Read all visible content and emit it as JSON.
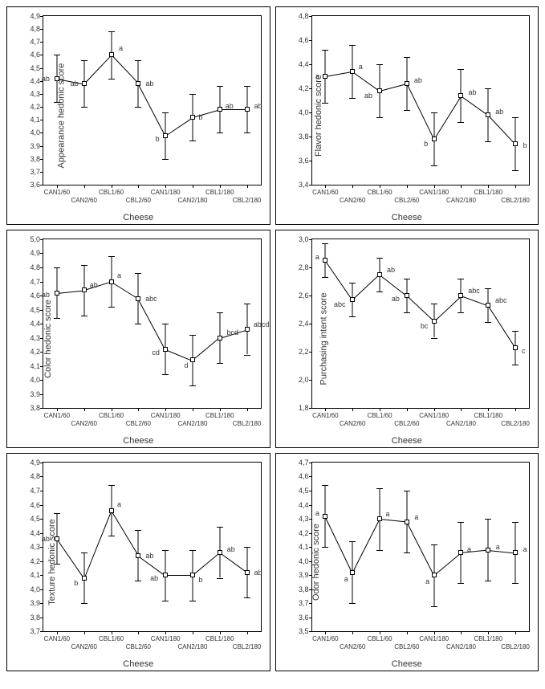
{
  "global": {
    "xlabel": "Cheese",
    "categories": [
      "CAN1/60",
      "CAN2/60",
      "CBL1/60",
      "CBL2/60",
      "CAN1/180",
      "CAN2/180",
      "CBL1/180",
      "CBL2/180"
    ],
    "background_color": "#ffffff",
    "point_fill": "#ffffff",
    "point_border": "#000000",
    "line_color": "#000000",
    "errbar_color": "#000000",
    "font_family": "Arial",
    "label_fontsize": 11,
    "tick_fontsize": 9,
    "annot_fontsize": 9,
    "marker_size": 6,
    "cap_width": 8
  },
  "panels": [
    {
      "ylabel": "Appearance hedonic score",
      "ylim": [
        3.6,
        4.9
      ],
      "yticks": [
        3.6,
        3.7,
        3.8,
        3.9,
        4.0,
        4.1,
        4.2,
        4.3,
        4.4,
        4.5,
        4.6,
        4.7,
        4.8,
        4.9
      ],
      "data": [
        {
          "y": 4.42,
          "err": 0.18,
          "label": "ab",
          "dx": -14,
          "dy": 0
        },
        {
          "y": 4.38,
          "err": 0.18,
          "label": "ab",
          "dx": -12,
          "dy": 0
        },
        {
          "y": 4.6,
          "err": 0.18,
          "label": "a",
          "dx": 12,
          "dy": -8
        },
        {
          "y": 4.38,
          "err": 0.18,
          "label": "ab",
          "dx": 14,
          "dy": 0
        },
        {
          "y": 3.98,
          "err": 0.18,
          "label": "b",
          "dx": -10,
          "dy": 4
        },
        {
          "y": 4.12,
          "err": 0.18,
          "label": "b",
          "dx": 10,
          "dy": 0
        },
        {
          "y": 4.18,
          "err": 0.18,
          "label": "ab",
          "dx": 12,
          "dy": -4
        },
        {
          "y": 4.18,
          "err": 0.18,
          "label": "ab",
          "dx": 14,
          "dy": -4
        }
      ]
    },
    {
      "ylabel": "Flavor hedonic score",
      "ylim": [
        3.4,
        4.8
      ],
      "yticks": [
        3.4,
        3.6,
        3.8,
        4.0,
        4.2,
        4.4,
        4.6,
        4.8
      ],
      "data": [
        {
          "y": 4.3,
          "err": 0.22,
          "label": "a",
          "dx": -10,
          "dy": 0
        },
        {
          "y": 4.34,
          "err": 0.22,
          "label": "a",
          "dx": 10,
          "dy": -6
        },
        {
          "y": 4.18,
          "err": 0.22,
          "label": "ab",
          "dx": -14,
          "dy": 6
        },
        {
          "y": 4.24,
          "err": 0.22,
          "label": "ab",
          "dx": 14,
          "dy": -4
        },
        {
          "y": 3.78,
          "err": 0.22,
          "label": "b",
          "dx": -10,
          "dy": 6
        },
        {
          "y": 4.14,
          "err": 0.22,
          "label": "ab",
          "dx": 14,
          "dy": -4
        },
        {
          "y": 3.98,
          "err": 0.22,
          "label": "ab",
          "dx": 14,
          "dy": -4
        },
        {
          "y": 3.74,
          "err": 0.22,
          "label": "b",
          "dx": 12,
          "dy": 2
        }
      ]
    },
    {
      "ylabel": "Color hedonic score",
      "ylim": [
        3.8,
        5.0
      ],
      "yticks": [
        3.8,
        3.9,
        4.0,
        4.1,
        4.2,
        4.3,
        4.4,
        4.5,
        4.6,
        4.7,
        4.8,
        4.9,
        5.0
      ],
      "data": [
        {
          "y": 4.62,
          "err": 0.18,
          "label": "ab",
          "dx": -14,
          "dy": 2
        },
        {
          "y": 4.64,
          "err": 0.18,
          "label": "ab",
          "dx": 12,
          "dy": -6
        },
        {
          "y": 4.7,
          "err": 0.18,
          "label": "a",
          "dx": 10,
          "dy": -8
        },
        {
          "y": 4.58,
          "err": 0.18,
          "label": "abc",
          "dx": 16,
          "dy": 0
        },
        {
          "y": 4.22,
          "err": 0.18,
          "label": "cd",
          "dx": -12,
          "dy": 4
        },
        {
          "y": 4.14,
          "err": 0.18,
          "label": "d",
          "dx": -8,
          "dy": 6
        },
        {
          "y": 4.3,
          "err": 0.18,
          "label": "bcd",
          "dx": 16,
          "dy": -6
        },
        {
          "y": 4.36,
          "err": 0.18,
          "label": "abcd",
          "dx": 18,
          "dy": -6
        }
      ]
    },
    {
      "ylabel": "Purchasing intent score",
      "ylim": [
        1.8,
        3.0
      ],
      "yticks": [
        1.8,
        2.0,
        2.2,
        2.4,
        2.6,
        2.8,
        3.0
      ],
      "data": [
        {
          "y": 2.85,
          "err": 0.12,
          "label": "a",
          "dx": -10,
          "dy": -4
        },
        {
          "y": 2.57,
          "err": 0.12,
          "label": "abc",
          "dx": -16,
          "dy": 6
        },
        {
          "y": 2.75,
          "err": 0.12,
          "label": "ab",
          "dx": 14,
          "dy": -6
        },
        {
          "y": 2.6,
          "err": 0.12,
          "label": "ab",
          "dx": -14,
          "dy": 4
        },
        {
          "y": 2.42,
          "err": 0.12,
          "label": "bc",
          "dx": -12,
          "dy": 6
        },
        {
          "y": 2.6,
          "err": 0.12,
          "label": "abc",
          "dx": 16,
          "dy": -6
        },
        {
          "y": 2.53,
          "err": 0.12,
          "label": "abc",
          "dx": 16,
          "dy": -6
        },
        {
          "y": 2.23,
          "err": 0.12,
          "label": "c",
          "dx": 10,
          "dy": 4
        }
      ]
    },
    {
      "ylabel": "Texture hedonic score",
      "ylim": [
        3.7,
        4.9
      ],
      "yticks": [
        3.7,
        3.8,
        3.9,
        4.0,
        4.1,
        4.2,
        4.3,
        4.4,
        4.5,
        4.6,
        4.7,
        4.8,
        4.9
      ],
      "data": [
        {
          "y": 4.36,
          "err": 0.18,
          "label": "ab",
          "dx": -14,
          "dy": 0
        },
        {
          "y": 4.08,
          "err": 0.18,
          "label": "b",
          "dx": -10,
          "dy": 6
        },
        {
          "y": 4.56,
          "err": 0.18,
          "label": "a",
          "dx": 10,
          "dy": -8
        },
        {
          "y": 4.24,
          "err": 0.18,
          "label": "ab",
          "dx": 14,
          "dy": 0
        },
        {
          "y": 4.1,
          "err": 0.18,
          "label": "ab",
          "dx": -14,
          "dy": 4
        },
        {
          "y": 4.1,
          "err": 0.18,
          "label": "b",
          "dx": 10,
          "dy": 6
        },
        {
          "y": 4.26,
          "err": 0.18,
          "label": "ab",
          "dx": 14,
          "dy": -4
        },
        {
          "y": 4.12,
          "err": 0.18,
          "label": "ab",
          "dx": 14,
          "dy": 0
        }
      ]
    },
    {
      "ylabel": "Odor hedonic score",
      "ylim": [
        3.5,
        4.7
      ],
      "yticks": [
        3.5,
        3.6,
        3.7,
        3.8,
        3.9,
        4.0,
        4.1,
        4.2,
        4.3,
        4.4,
        4.5,
        4.6,
        4.7
      ],
      "data": [
        {
          "y": 4.32,
          "err": 0.22,
          "label": "a",
          "dx": -10,
          "dy": -4
        },
        {
          "y": 3.92,
          "err": 0.22,
          "label": "a",
          "dx": -8,
          "dy": 8
        },
        {
          "y": 4.3,
          "err": 0.22,
          "label": "a",
          "dx": 10,
          "dy": -6
        },
        {
          "y": 4.28,
          "err": 0.22,
          "label": "a",
          "dx": 12,
          "dy": -6
        },
        {
          "y": 3.9,
          "err": 0.22,
          "label": "a",
          "dx": -8,
          "dy": 8
        },
        {
          "y": 4.06,
          "err": 0.22,
          "label": "a",
          "dx": 10,
          "dy": -4
        },
        {
          "y": 4.08,
          "err": 0.22,
          "label": "a",
          "dx": 12,
          "dy": -4
        },
        {
          "y": 4.06,
          "err": 0.22,
          "label": "a",
          "dx": 12,
          "dy": -4
        }
      ]
    }
  ]
}
